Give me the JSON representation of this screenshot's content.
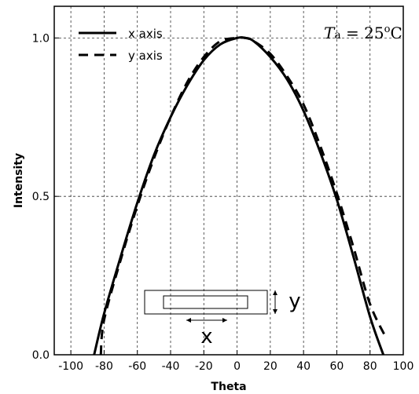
{
  "chart_data": {
    "type": "line",
    "title": "",
    "xlabel": "Theta",
    "ylabel": "Intensity",
    "xlim": [
      -110,
      100
    ],
    "ylim": [
      0.0,
      1.1
    ],
    "xticks": [
      -100,
      -80,
      -60,
      -40,
      -20,
      0,
      20,
      40,
      60,
      80,
      100
    ],
    "xtick_labels": [
      "-100",
      "-80",
      "-60",
      "-40",
      "-20",
      "0",
      "20",
      "40",
      "60",
      "80",
      "100"
    ],
    "yticks": [
      0.0,
      0.5,
      1.0
    ],
    "ytick_labels": [
      "0.0",
      "0.5",
      "1.0"
    ],
    "grid": true,
    "legend_position": "top-left",
    "series": [
      {
        "name": "x axis",
        "style": "solid",
        "x": [
          -86,
          -80,
          -70,
          -60,
          -50,
          -40,
          -30,
          -20,
          -10,
          0,
          5,
          10,
          20,
          30,
          40,
          50,
          60,
          70,
          80,
          88
        ],
        "y": [
          0.0,
          0.13,
          0.31,
          0.48,
          0.63,
          0.75,
          0.85,
          0.93,
          0.98,
          1.0,
          1.0,
          0.99,
          0.94,
          0.87,
          0.77,
          0.64,
          0.49,
          0.31,
          0.12,
          0.0
        ]
      },
      {
        "name": "y axis",
        "style": "dashed",
        "x": [
          -82,
          -80,
          -70,
          -60,
          -50,
          -40,
          -30,
          -20,
          -10,
          0,
          5,
          10,
          20,
          30,
          40,
          50,
          60,
          70,
          80,
          90
        ],
        "y": [
          0.0,
          0.11,
          0.3,
          0.47,
          0.62,
          0.75,
          0.86,
          0.94,
          0.99,
          1.0,
          1.0,
          0.99,
          0.95,
          0.88,
          0.79,
          0.66,
          0.51,
          0.34,
          0.16,
          0.05
        ]
      }
    ],
    "annotation": {
      "italic": "T",
      "sub": "a",
      "rest": " = 25",
      "sup": "o",
      "unit": "C"
    },
    "inset": {
      "x_label": "x",
      "y_label": "y"
    }
  }
}
